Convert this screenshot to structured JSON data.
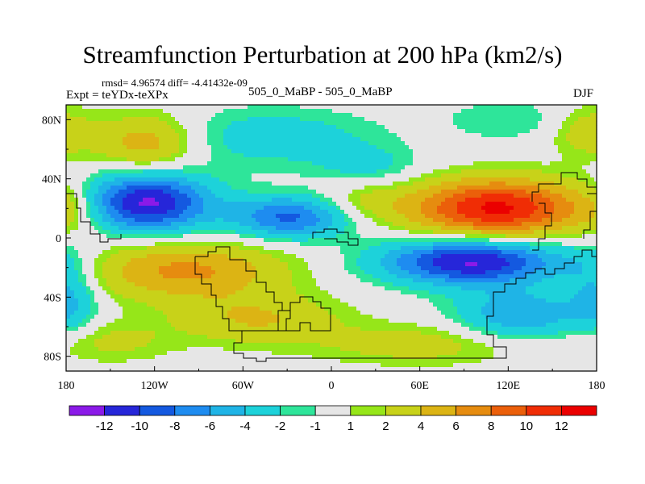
{
  "chart_data": {
    "type": "heatmap",
    "title": "Streamfunction Perturbation at 200 hPa (km2/s)",
    "stats_label": "rmsd= 4.96574 diff= -4.41432e-09",
    "experiment_label": "Expt = teYDx-teXPx",
    "center_label": "505_0_MaBP - 505_0_MaBP",
    "season_label": "DJF",
    "x_ticks": [
      {
        "value": -180,
        "label": "180"
      },
      {
        "value": -120,
        "label": "120W"
      },
      {
        "value": -60,
        "label": "60W"
      },
      {
        "value": 0,
        "label": "0"
      },
      {
        "value": 60,
        "label": "60E"
      },
      {
        "value": 120,
        "label": "120E"
      },
      {
        "value": 180,
        "label": "180"
      }
    ],
    "y_ticks": [
      {
        "value": 80,
        "label": "80N"
      },
      {
        "value": 40,
        "label": "40N"
      },
      {
        "value": 0,
        "label": "0"
      },
      {
        "value": -40,
        "label": "40S"
      },
      {
        "value": -80,
        "label": "80S"
      }
    ],
    "xlim": [
      -180,
      180
    ],
    "ylim": [
      -90,
      90
    ],
    "colorbar": {
      "levels": [
        "-12",
        "-10",
        "-8",
        "-6",
        "-4",
        "-2",
        "-1",
        "1",
        "2",
        "4",
        "6",
        "8",
        "10",
        "12"
      ],
      "colors": [
        "#8b1ae8",
        "#2626d9",
        "#1459e0",
        "#1e8cf0",
        "#1fb4e6",
        "#1dd2da",
        "#2ee59a",
        "#e6e6e6",
        "#96e619",
        "#c8d219",
        "#dcb414",
        "#e68c0f",
        "#eb5f0a",
        "#f02d05",
        "#eb0000"
      ]
    },
    "field_features": [
      {
        "lon": -125,
        "lat": 64,
        "amplitude": 5.5,
        "spread_lon": 24,
        "spread_lat": 14
      },
      {
        "lon": -125,
        "lat": 24,
        "amplitude": -12.5,
        "spread_lon": 30,
        "spread_lat": 14
      },
      {
        "lon": -28,
        "lat": 14,
        "amplitude": -8.5,
        "spread_lon": 28,
        "spread_lat": 10
      },
      {
        "lon": -40,
        "lat": 68,
        "amplitude": -3.2,
        "spread_lon": 50,
        "spread_lat": 14
      },
      {
        "lon": 112,
        "lat": 20,
        "amplitude": 12.5,
        "spread_lon": 42,
        "spread_lat": 14
      },
      {
        "lon": 95,
        "lat": -16,
        "amplitude": -12.5,
        "spread_lon": 42,
        "spread_lat": 11
      },
      {
        "lon": -100,
        "lat": -22,
        "amplitude": 6.5,
        "spread_lon": 48,
        "spread_lat": 14
      },
      {
        "lon": -50,
        "lat": -55,
        "amplitude": 4,
        "spread_lon": 40,
        "spread_lat": 12
      },
      {
        "lon": 128,
        "lat": -52,
        "amplitude": -6,
        "spread_lon": 30,
        "spread_lat": 12
      },
      {
        "lon": 60,
        "lat": -72,
        "amplitude": 3,
        "spread_lon": 50,
        "spread_lat": 10
      },
      {
        "lon": 175,
        "lat": 72,
        "amplitude": 3.5,
        "spread_lon": 18,
        "spread_lat": 12
      },
      {
        "lon": 120,
        "lat": 80,
        "amplitude": -2,
        "spread_lon": 30,
        "spread_lat": 10
      },
      {
        "lon": -178,
        "lat": 20,
        "amplitude": 2.5,
        "spread_lon": 14,
        "spread_lat": 12
      },
      {
        "lon": -178,
        "lat": -45,
        "amplitude": -4,
        "spread_lon": 14,
        "spread_lat": 14
      },
      {
        "lon": 25,
        "lat": 48,
        "amplitude": -2.5,
        "spread_lon": 25,
        "spread_lat": 10
      },
      {
        "lon": 20,
        "lat": 25,
        "amplitude": 2.2,
        "spread_lon": 22,
        "spread_lat": 10
      },
      {
        "lon": 178,
        "lat": -20,
        "amplitude": -2.5,
        "spread_lon": 16,
        "spread_lat": 14
      },
      {
        "lon": -150,
        "lat": -70,
        "amplitude": 2.5,
        "spread_lon": 30,
        "spread_lat": 10
      }
    ]
  }
}
